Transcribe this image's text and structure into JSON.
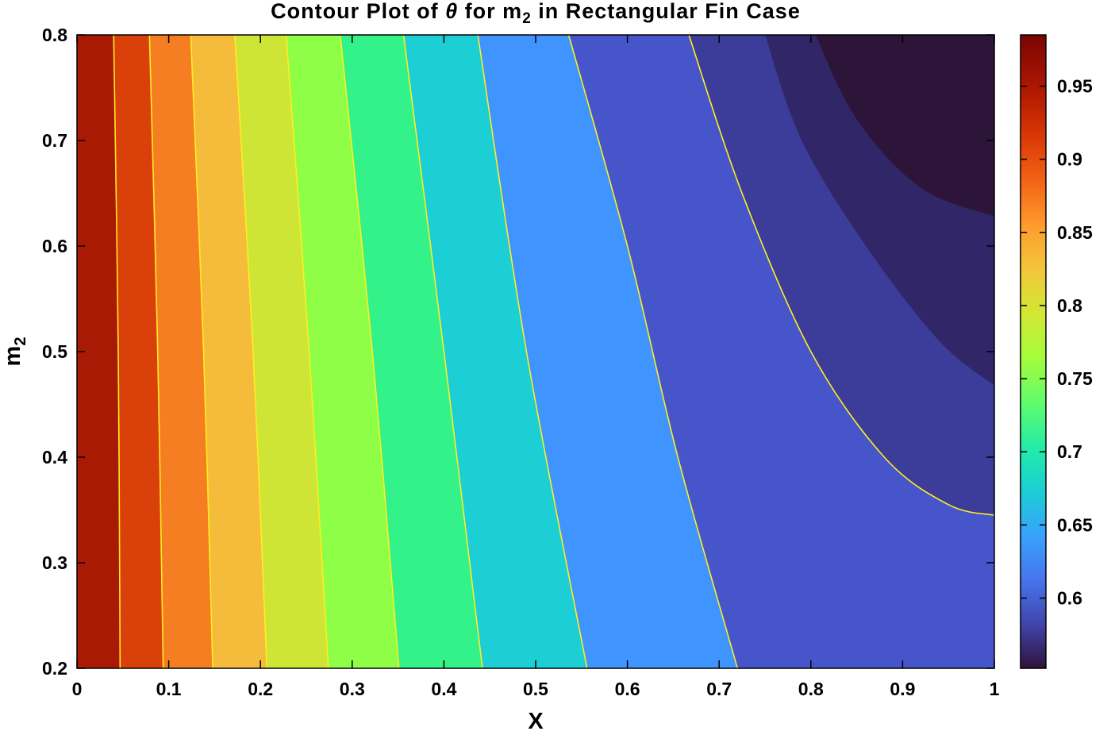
{
  "chart_data": {
    "type": "contour",
    "title_parts": [
      "Contour Plot of ",
      "θ",
      " for m",
      "2",
      " in Rectangular Fin Case"
    ],
    "xlabel": "X",
    "ylabel_parts": [
      "m",
      "2"
    ],
    "xlim": [
      0,
      1
    ],
    "ylim": [
      0.2,
      0.8
    ],
    "xticks": [
      0,
      0.1,
      0.2,
      0.3,
      0.4,
      0.5,
      0.6,
      0.7,
      0.8,
      0.9,
      1
    ],
    "xtick_labels": [
      "0",
      "0.1",
      "0.2",
      "0.3",
      "0.4",
      "0.5",
      "0.6",
      "0.7",
      "0.8",
      "0.9",
      "1"
    ],
    "yticks": [
      0.2,
      0.3,
      0.4,
      0.5,
      0.6,
      0.7,
      0.8
    ],
    "ytick_labels": [
      "0.2",
      "0.3",
      "0.4",
      "0.5",
      "0.6",
      "0.7",
      "0.8"
    ],
    "colorbar": {
      "range": [
        0.552,
        0.985
      ],
      "ticks": [
        0.6,
        0.65,
        0.7,
        0.75,
        0.8,
        0.85,
        0.9,
        0.95
      ],
      "tick_labels": [
        "0.6",
        "0.65",
        "0.7",
        "0.75",
        "0.8",
        "0.85",
        "0.9",
        "0.95"
      ],
      "colormap": "turbo"
    },
    "contour_line_color": "#ffee22",
    "bands": [
      {
        "color": "#a81a04",
        "upper_boundary": [
          [
            0.04,
            0.8
          ],
          [
            0.045,
            0.5
          ],
          [
            0.047,
            0.2
          ]
        ]
      },
      {
        "color": "#d9400a",
        "upper_boundary": [
          [
            0.079,
            0.8
          ],
          [
            0.088,
            0.5
          ],
          [
            0.094,
            0.2
          ]
        ]
      },
      {
        "color": "#f47e21",
        "upper_boundary": [
          [
            0.124,
            0.8
          ],
          [
            0.138,
            0.5
          ],
          [
            0.148,
            0.2
          ]
        ]
      },
      {
        "color": "#f5bc3c",
        "upper_boundary": [
          [
            0.172,
            0.8
          ],
          [
            0.192,
            0.5
          ],
          [
            0.207,
            0.2
          ]
        ]
      },
      {
        "color": "#cfe535",
        "upper_boundary": [
          [
            0.228,
            0.8
          ],
          [
            0.253,
            0.5
          ],
          [
            0.274,
            0.2
          ]
        ]
      },
      {
        "color": "#8efe47",
        "upper_boundary": [
          [
            0.287,
            0.8
          ],
          [
            0.322,
            0.5
          ],
          [
            0.351,
            0.2
          ]
        ]
      },
      {
        "color": "#33f289",
        "upper_boundary": [
          [
            0.356,
            0.8
          ],
          [
            0.4,
            0.5
          ],
          [
            0.442,
            0.2
          ]
        ]
      },
      {
        "color": "#1bcfd5",
        "upper_boundary": [
          [
            0.437,
            0.8
          ],
          [
            0.49,
            0.5
          ],
          [
            0.556,
            0.2
          ]
        ]
      },
      {
        "color": "#3f94fe",
        "upper_boundary": [
          [
            0.536,
            0.8
          ],
          [
            0.6,
            0.6
          ],
          [
            0.655,
            0.4
          ],
          [
            0.72,
            0.2
          ]
        ]
      },
      {
        "color": "#4655c9",
        "upper_boundary": [
          [
            0.667,
            0.8
          ],
          [
            0.725,
            0.65
          ],
          [
            0.8,
            0.5
          ],
          [
            0.88,
            0.4
          ],
          [
            0.95,
            0.355
          ],
          [
            1.0,
            0.345
          ]
        ]
      },
      {
        "color": "#3c3d9a",
        "upper_boundary": [
          [
            0.75,
            0.8
          ],
          [
            0.79,
            0.7
          ],
          [
            0.86,
            0.6
          ],
          [
            0.94,
            0.51
          ],
          [
            1.0,
            0.468
          ]
        ]
      },
      {
        "color": "#312768",
        "upper_boundary": [
          [
            0.805,
            0.8
          ],
          [
            0.85,
            0.72
          ],
          [
            0.92,
            0.655
          ],
          [
            1.0,
            0.628
          ]
        ]
      },
      {
        "color": "#2c1539",
        "upper_boundary": []
      }
    ],
    "contour_lines_drawn_on_boundaries": [
      0,
      1,
      2,
      3,
      4,
      5,
      6,
      7,
      8,
      9
    ]
  }
}
